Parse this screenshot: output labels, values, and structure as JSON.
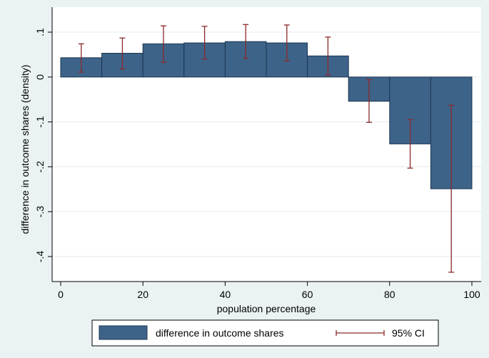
{
  "chart_data": {
    "type": "bar",
    "title": "",
    "xlabel": "population percentage",
    "ylabel": "difference in outcome shares (density)",
    "xlim": [
      0,
      100
    ],
    "ylim": [
      -0.44,
      0.11
    ],
    "x_ticks": [
      0,
      20,
      40,
      60,
      80,
      100
    ],
    "x_tick_labels": [
      "0",
      "20",
      "40",
      "60",
      "80",
      "100"
    ],
    "y_ticks": [
      0.1,
      0,
      -0.1,
      -0.2,
      -0.3,
      -0.4
    ],
    "y_tick_labels": [
      ".1",
      "0",
      "-.1",
      "-.2",
      "-.3",
      "-.4"
    ],
    "bin_width": 10,
    "grid": true,
    "legend_position": "bottom",
    "series": [
      {
        "name": "difference in outcome shares",
        "type": "bar",
        "color": "#3e6389",
        "x_start": [
          0,
          10,
          20,
          30,
          40,
          50,
          60,
          70,
          80,
          90
        ],
        "values": [
          0.043,
          0.053,
          0.074,
          0.076,
          0.079,
          0.076,
          0.047,
          -0.054,
          -0.149,
          -0.249
        ]
      },
      {
        "name": "95% CI",
        "type": "errorbar",
        "color": "#8b2a2a",
        "x": [
          5,
          15,
          25,
          35,
          45,
          55,
          65,
          75,
          85,
          95
        ],
        "lower": [
          0.011,
          0.018,
          0.033,
          0.04,
          0.042,
          0.036,
          0.004,
          -0.101,
          -0.203,
          -0.435
        ],
        "upper": [
          0.074,
          0.087,
          0.114,
          0.113,
          0.117,
          0.116,
          0.089,
          -0.006,
          -0.095,
          -0.063
        ]
      }
    ]
  }
}
